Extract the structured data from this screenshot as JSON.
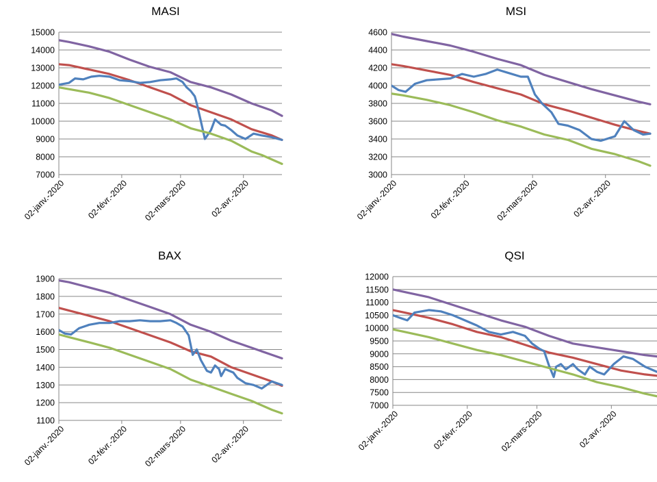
{
  "series_colors": [
    "#8064A2",
    "#C0504D",
    "#4F81BD",
    "#9BBB59"
  ],
  "chart_data": [
    {
      "type": "line",
      "title": "MASI",
      "ylim": [
        7000,
        15000
      ],
      "yticks": [
        "7000",
        "8000",
        "9000",
        "10000",
        "11000",
        "12000",
        "13000",
        "14000",
        "15000"
      ],
      "xlim": [
        0,
        110
      ],
      "xticks": [
        {
          "x": 0,
          "label": "02-janv.-2020"
        },
        {
          "x": 31,
          "label": "02-févr.-2020"
        },
        {
          "x": 60,
          "label": "02-mars-2020"
        },
        {
          "x": 91,
          "label": "02-avr.-2020"
        }
      ],
      "grid": true,
      "series": [
        {
          "color": "#8064A2",
          "x": [
            0,
            5,
            15,
            25,
            35,
            45,
            55,
            65,
            75,
            85,
            95,
            105,
            110
          ],
          "y": [
            14550,
            14450,
            14200,
            13900,
            13450,
            13050,
            12750,
            12200,
            11900,
            11500,
            11000,
            10600,
            10300
          ]
        },
        {
          "color": "#C0504D",
          "x": [
            0,
            5,
            15,
            25,
            35,
            45,
            55,
            65,
            75,
            85,
            95,
            105,
            110
          ],
          "y": [
            13200,
            13150,
            12900,
            12650,
            12300,
            11900,
            11500,
            10900,
            10500,
            10100,
            9550,
            9200,
            8950
          ]
        },
        {
          "color": "#4F81BD",
          "x": [
            0,
            5,
            8,
            12,
            16,
            20,
            25,
            30,
            35,
            40,
            45,
            50,
            55,
            58,
            61,
            63,
            65,
            67,
            68,
            70,
            72,
            75,
            77,
            80,
            82,
            85,
            88,
            92,
            96,
            100,
            105,
            110
          ],
          "y": [
            12050,
            12150,
            12400,
            12350,
            12500,
            12550,
            12500,
            12300,
            12250,
            12150,
            12200,
            12300,
            12350,
            12400,
            12200,
            11900,
            11700,
            11400,
            11000,
            10000,
            9000,
            9500,
            10100,
            9800,
            9750,
            9500,
            9200,
            9000,
            9300,
            9200,
            9100,
            8950
          ]
        },
        {
          "color": "#9BBB59",
          "x": [
            0,
            5,
            15,
            25,
            35,
            45,
            55,
            65,
            75,
            85,
            95,
            100,
            105,
            110
          ],
          "y": [
            11900,
            11800,
            11600,
            11300,
            10900,
            10500,
            10100,
            9600,
            9300,
            8900,
            8300,
            8100,
            7850,
            7600
          ]
        }
      ]
    },
    {
      "type": "line",
      "title": "MSI",
      "ylim": [
        3000,
        4600
      ],
      "yticks": [
        "3000",
        "3200",
        "3400",
        "3600",
        "3800",
        "4000",
        "4200",
        "4400",
        "4600"
      ],
      "xlim": [
        0,
        110
      ],
      "xticks": [
        {
          "x": 0,
          "label": "02-janv.-2020"
        },
        {
          "x": 31,
          "label": "02-févr.-2020"
        },
        {
          "x": 60,
          "label": "02-mars-2020"
        },
        {
          "x": 91,
          "label": "02-avr.-2020"
        }
      ],
      "grid": true,
      "series": [
        {
          "color": "#8064A2",
          "x": [
            0,
            5,
            15,
            25,
            35,
            45,
            55,
            65,
            75,
            85,
            95,
            105,
            110
          ],
          "y": [
            4580,
            4550,
            4500,
            4450,
            4380,
            4300,
            4230,
            4120,
            4040,
            3960,
            3890,
            3820,
            3790
          ]
        },
        {
          "color": "#C0504D",
          "x": [
            0,
            5,
            15,
            25,
            35,
            45,
            55,
            65,
            75,
            85,
            95,
            105,
            110
          ],
          "y": [
            4240,
            4220,
            4170,
            4120,
            4040,
            3970,
            3900,
            3790,
            3720,
            3640,
            3560,
            3490,
            3460
          ]
        },
        {
          "color": "#4F81BD",
          "x": [
            0,
            3,
            6,
            10,
            15,
            20,
            25,
            30,
            35,
            40,
            45,
            50,
            55,
            58,
            61,
            64,
            68,
            71,
            75,
            80,
            85,
            89,
            95,
            99,
            103,
            107,
            110
          ],
          "y": [
            4000,
            3950,
            3930,
            4020,
            4060,
            4070,
            4080,
            4130,
            4100,
            4130,
            4180,
            4140,
            4100,
            4100,
            3900,
            3800,
            3700,
            3570,
            3550,
            3500,
            3400,
            3380,
            3430,
            3600,
            3500,
            3450,
            3460
          ]
        },
        {
          "color": "#9BBB59",
          "x": [
            0,
            5,
            15,
            25,
            35,
            45,
            55,
            65,
            75,
            85,
            95,
            105,
            110
          ],
          "y": [
            3910,
            3890,
            3840,
            3780,
            3700,
            3610,
            3540,
            3450,
            3390,
            3290,
            3230,
            3150,
            3100
          ]
        }
      ]
    },
    {
      "type": "line",
      "title": "BAX",
      "ylim": [
        1100,
        1900
      ],
      "yticks": [
        "1100",
        "1200",
        "1300",
        "1400",
        "1500",
        "1600",
        "1700",
        "1800",
        "1900"
      ],
      "xlim": [
        0,
        110
      ],
      "xticks": [
        {
          "x": 0,
          "label": "02-janv.-2020"
        },
        {
          "x": 31,
          "label": "02-févr.-2020"
        },
        {
          "x": 60,
          "label": "02-mars-2020"
        },
        {
          "x": 91,
          "label": "02-avr.-2020"
        }
      ],
      "grid": true,
      "series": [
        {
          "color": "#8064A2",
          "x": [
            0,
            5,
            15,
            25,
            35,
            45,
            55,
            65,
            75,
            85,
            95,
            105,
            110
          ],
          "y": [
            1890,
            1880,
            1850,
            1820,
            1780,
            1740,
            1700,
            1640,
            1600,
            1550,
            1510,
            1470,
            1450
          ]
        },
        {
          "color": "#C0504D",
          "x": [
            0,
            5,
            15,
            25,
            35,
            45,
            55,
            65,
            75,
            85,
            95,
            105,
            110
          ],
          "y": [
            1735,
            1720,
            1690,
            1660,
            1620,
            1580,
            1540,
            1490,
            1460,
            1400,
            1360,
            1320,
            1295
          ]
        },
        {
          "color": "#4F81BD",
          "x": [
            0,
            3,
            6,
            10,
            15,
            20,
            25,
            30,
            35,
            40,
            45,
            50,
            55,
            58,
            61,
            64,
            66,
            68,
            70,
            72,
            73,
            75,
            77,
            79,
            80,
            82,
            84,
            86,
            88,
            92,
            96,
            100,
            105,
            110
          ],
          "y": [
            1610,
            1590,
            1585,
            1620,
            1640,
            1650,
            1650,
            1660,
            1660,
            1665,
            1660,
            1660,
            1665,
            1650,
            1630,
            1580,
            1470,
            1500,
            1440,
            1400,
            1380,
            1370,
            1410,
            1390,
            1350,
            1390,
            1380,
            1370,
            1340,
            1310,
            1300,
            1280,
            1320,
            1300
          ]
        },
        {
          "color": "#9BBB59",
          "x": [
            0,
            5,
            15,
            25,
            35,
            45,
            55,
            65,
            75,
            85,
            95,
            105,
            110
          ],
          "y": [
            1585,
            1570,
            1540,
            1510,
            1470,
            1430,
            1390,
            1330,
            1290,
            1250,
            1210,
            1160,
            1140
          ]
        }
      ]
    },
    {
      "type": "line",
      "title": "QSI",
      "ylim": [
        7000,
        12000
      ],
      "yticks": [
        "7000",
        "7500",
        "8000",
        "8500",
        "9000",
        "9500",
        "10000",
        "10500",
        "11000",
        "11500",
        "12000"
      ],
      "xlim": [
        0,
        110
      ],
      "xticks": [
        {
          "x": 0,
          "label": "02-janv.-2020"
        },
        {
          "x": 31,
          "label": "02-févr.-2020"
        },
        {
          "x": 60,
          "label": "02-mars-2020"
        },
        {
          "x": 91,
          "label": "02-avr.-2020"
        }
      ],
      "grid": true,
      "series": [
        {
          "color": "#8064A2",
          "x": [
            0,
            5,
            15,
            25,
            35,
            45,
            55,
            65,
            75,
            85,
            95,
            105,
            110
          ],
          "y": [
            11500,
            11400,
            11200,
            10900,
            10600,
            10300,
            10050,
            9700,
            9400,
            9250,
            9100,
            8950,
            8900
          ]
        },
        {
          "color": "#C0504D",
          "x": [
            0,
            5,
            15,
            25,
            35,
            45,
            55,
            65,
            75,
            85,
            95,
            105,
            110
          ],
          "y": [
            10700,
            10600,
            10400,
            10150,
            9850,
            9650,
            9350,
            9050,
            8850,
            8600,
            8350,
            8200,
            8150
          ]
        },
        {
          "color": "#4F81BD",
          "x": [
            0,
            3,
            6,
            9,
            15,
            20,
            25,
            30,
            35,
            40,
            45,
            50,
            55,
            58,
            61,
            63,
            65,
            67,
            68,
            70,
            72,
            75,
            77,
            80,
            82,
            85,
            88,
            92,
            96,
            100,
            105,
            110
          ],
          "y": [
            10500,
            10400,
            10300,
            10600,
            10700,
            10650,
            10500,
            10300,
            10100,
            9850,
            9750,
            9850,
            9700,
            9400,
            9200,
            9100,
            8550,
            8100,
            8500,
            8600,
            8400,
            8600,
            8400,
            8200,
            8500,
            8300,
            8200,
            8600,
            8900,
            8800,
            8500,
            8300
          ]
        },
        {
          "color": "#9BBB59",
          "x": [
            0,
            5,
            15,
            25,
            35,
            45,
            55,
            65,
            75,
            85,
            95,
            105,
            110
          ],
          "y": [
            9950,
            9850,
            9650,
            9400,
            9150,
            8950,
            8700,
            8450,
            8200,
            7900,
            7700,
            7450,
            7350
          ]
        }
      ]
    }
  ]
}
